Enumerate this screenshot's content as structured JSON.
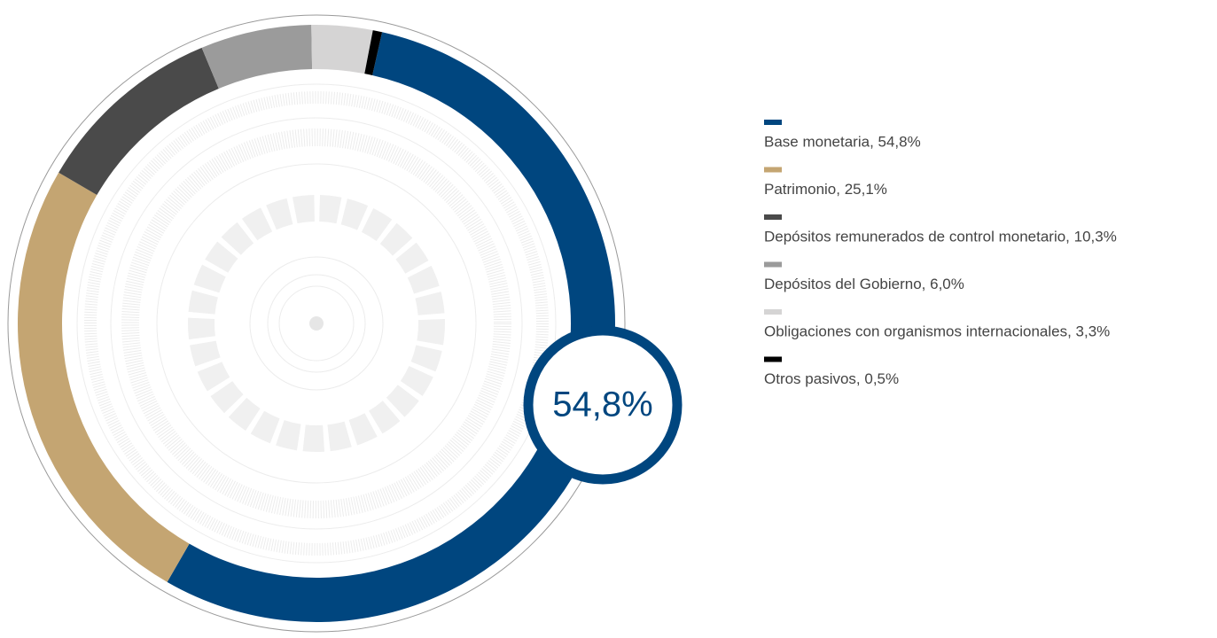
{
  "chart_data": {
    "type": "donut",
    "categories": [
      "Base monetaria, 54,8%",
      "Patrimonio, 25,1%",
      "Depósitos remunerados de control monetario, 10,3%",
      "Depósitos del Gobierno, 6,0%",
      "Obligaciones con organismos internacionales, 3,3%",
      "Otros pasivos, 0,5%"
    ],
    "values": [
      54.8,
      25.1,
      10.3,
      6.0,
      3.3,
      0.5
    ],
    "colors": [
      "#00467f",
      "#c4a572",
      "#4a4a4a",
      "#9b9b9b",
      "#d5d4d4",
      "#000000"
    ],
    "center_label": "54,8%"
  }
}
